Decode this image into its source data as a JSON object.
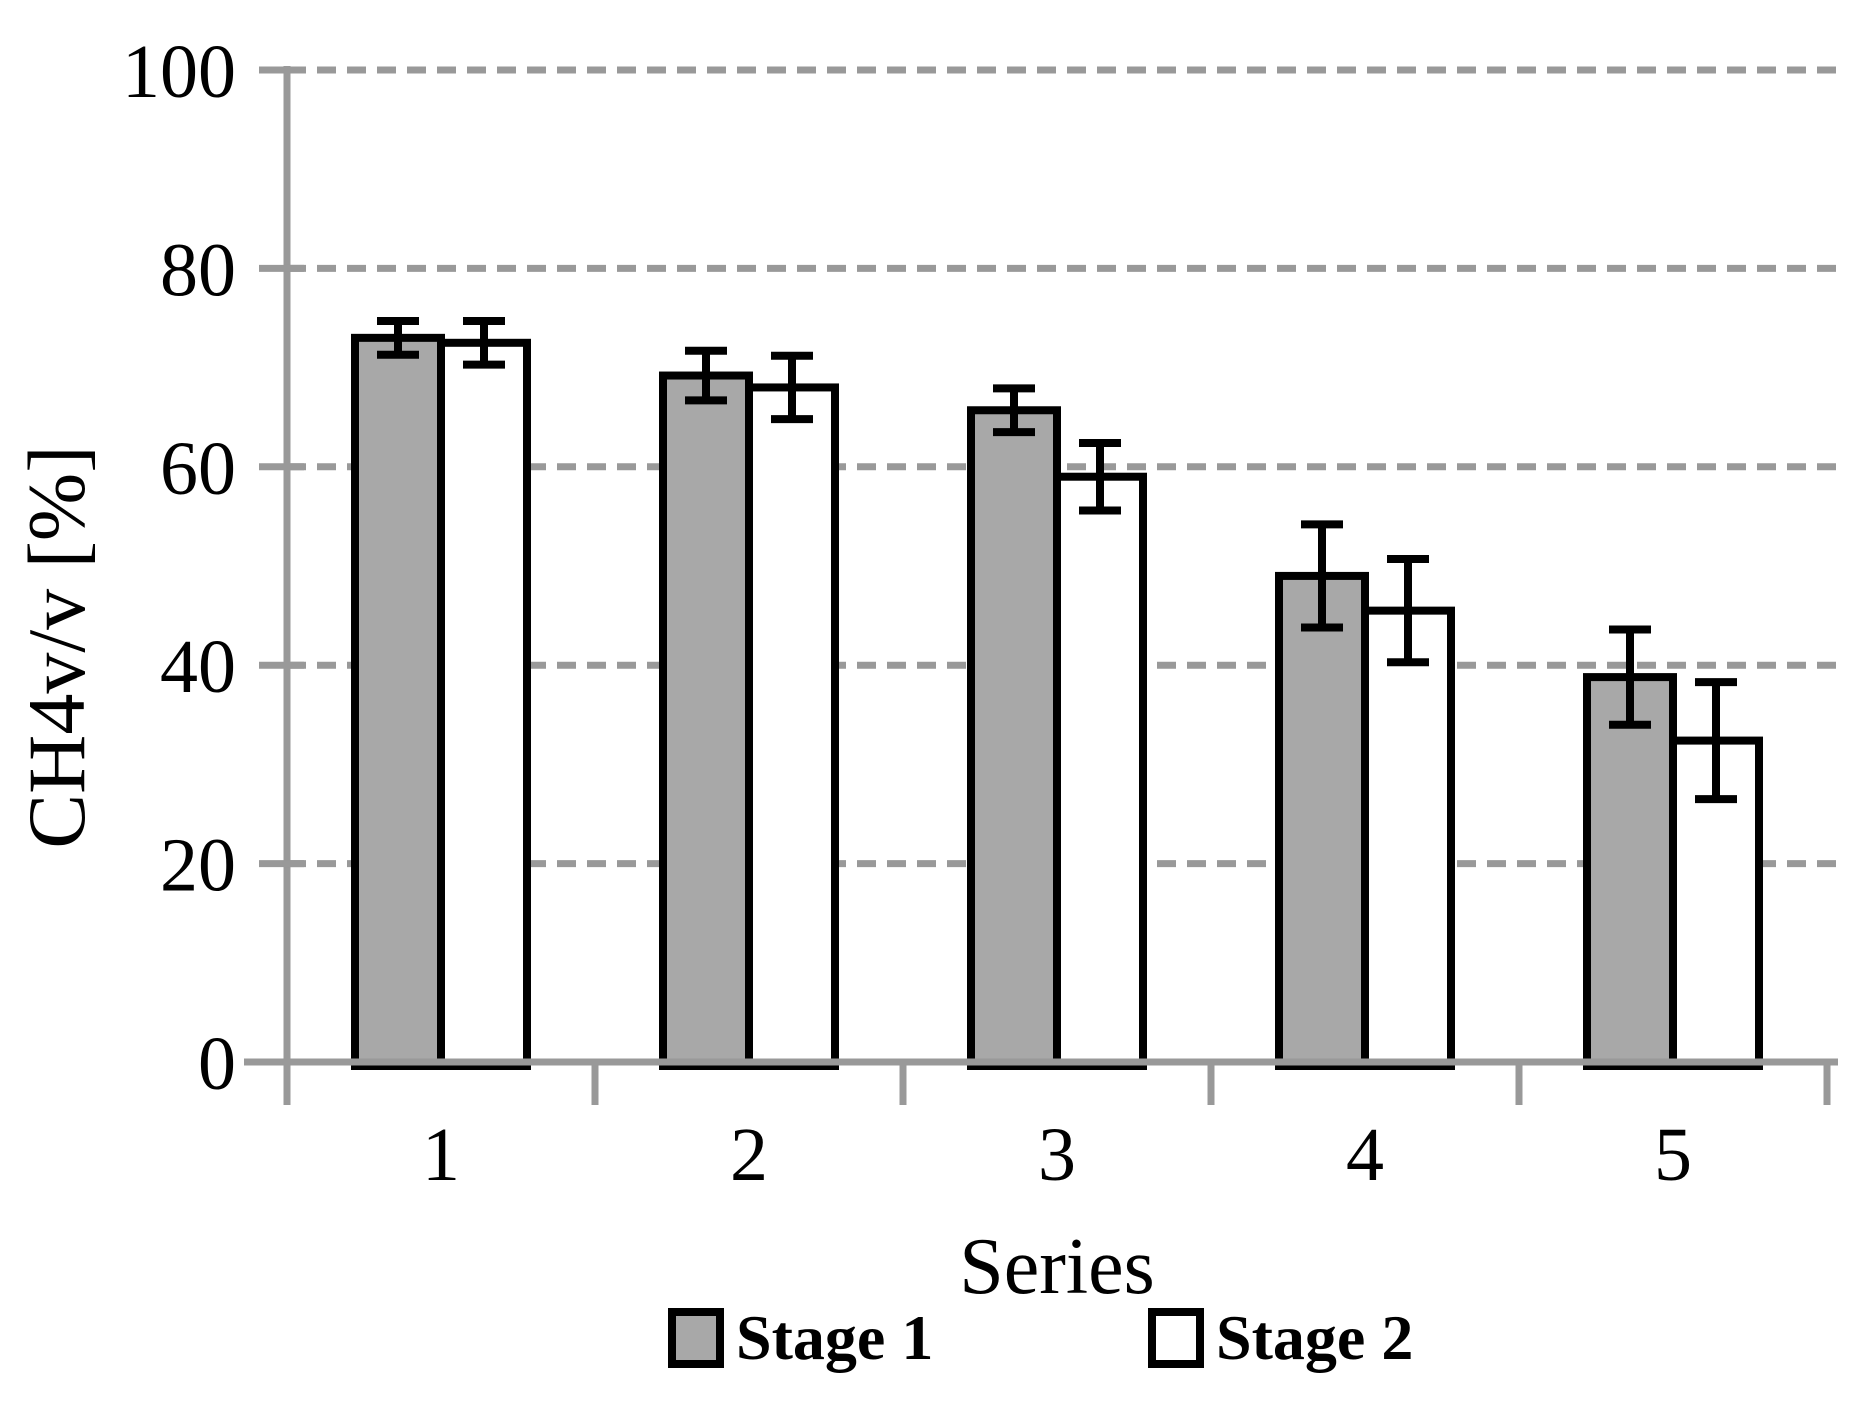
{
  "chart_data": {
    "type": "bar",
    "xlabel": "Series",
    "ylabel": "CH4v/v [%]",
    "categories": [
      "1",
      "2",
      "3",
      "4",
      "5"
    ],
    "series": [
      {
        "name": "Stage 1",
        "fill": "#a8a8a8",
        "values": [
          73.0,
          69.2,
          65.7,
          49.0,
          38.8
        ],
        "errors": [
          1.7,
          2.5,
          2.2,
          5.2,
          4.8
        ]
      },
      {
        "name": "Stage 2",
        "fill": "#ffffff",
        "values": [
          72.5,
          68.0,
          59.0,
          45.5,
          32.4
        ],
        "errors": [
          2.2,
          3.2,
          3.4,
          5.2,
          5.9
        ]
      }
    ],
    "ylim": [
      0,
      100
    ],
    "yticks": [
      0,
      20,
      40,
      60,
      80,
      100
    ],
    "ytick_labels": [
      "0",
      "20",
      "40",
      "60",
      "80",
      "100"
    ],
    "grid": {
      "horizontal": true,
      "style": "dashed",
      "on_ticks_above_zero": true
    },
    "legend_position": "bottom",
    "error_bars": true
  },
  "colors": {
    "axis": "#999999",
    "grid": "#999999",
    "bar_outline": "#000000",
    "error_bar": "#000000",
    "text": "#000000",
    "background": "#ffffff"
  }
}
